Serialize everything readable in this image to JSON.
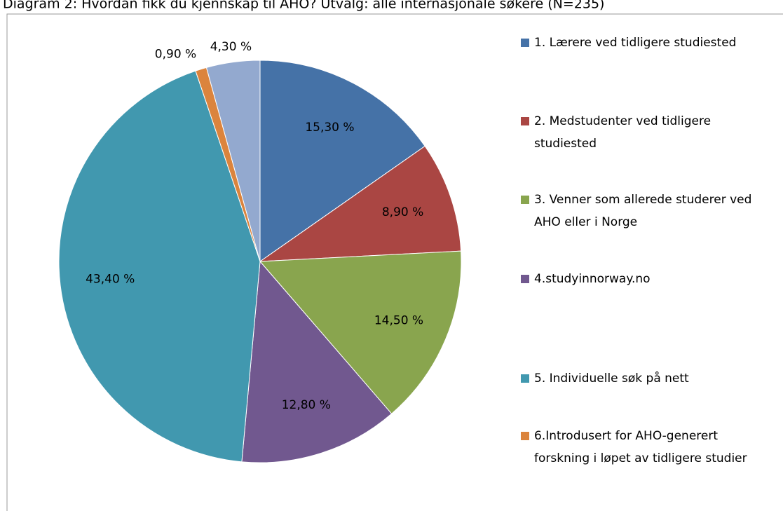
{
  "chart_data": {
    "type": "pie",
    "title": "Diagram 2: Hvordan fikk du kjennskap til AHO? Utvalg: alle internasjonale søkere (N=235)",
    "categories": [
      "1. Lærere ved tidligere studiested",
      "2. Medstudenter ved tidligere studiested",
      "3. Venner som allerede studerer ved AHO eller i Norge",
      "4.studyinnorway.no",
      "5. Individuelle søk på nett",
      "6.Introdusert for AHO-generert forskning i løpet av tidligere studier",
      null
    ],
    "values": [
      15.3,
      8.9,
      14.5,
      12.8,
      43.4,
      0.9,
      4.3
    ],
    "value_labels": [
      "15,30 %",
      "8,90 %",
      "14,50 %",
      "12,80 %",
      "43,40 %",
      "0,90 %",
      "4,30 %"
    ],
    "colors": [
      "#4572a7",
      "#aa4643",
      "#89a54e",
      "#71588f",
      "#4198af",
      "#db843d",
      "#93a9cf"
    ],
    "legend": "right"
  }
}
